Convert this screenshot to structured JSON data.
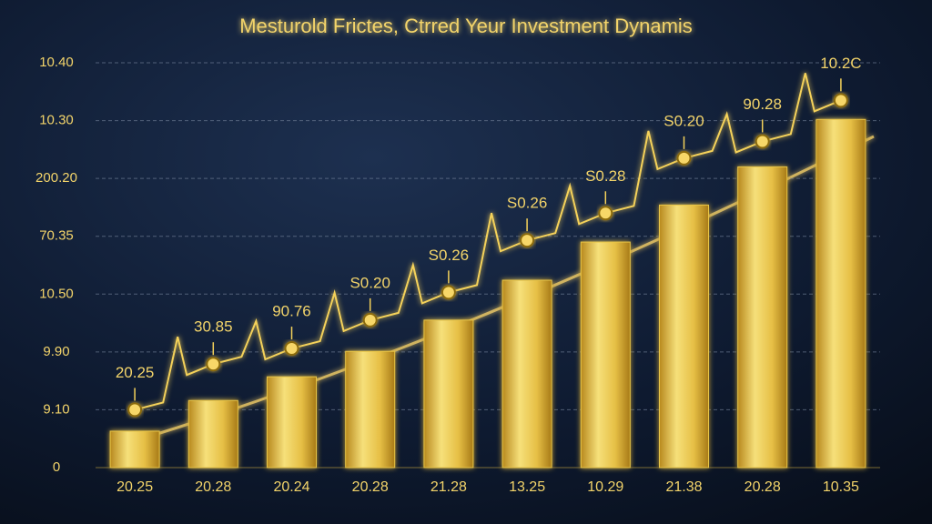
{
  "chart_data": {
    "type": "bar",
    "title": "Mesturold Frictes, Ctrred Yeur Investment Dynamis",
    "categories": [
      "20.25",
      "20.28",
      "20.24",
      "20.28",
      "21.28",
      "13.25",
      "10.29",
      "21.38",
      "20.28",
      "10.35"
    ],
    "series": [
      {
        "type": "bar",
        "color": "#e8c547",
        "values": [
          0.63,
          1.16,
          1.57,
          2.01,
          2.55,
          3.24,
          3.9,
          4.54,
          5.2,
          6.02
        ]
      },
      {
        "type": "line",
        "color": "#f5d25a",
        "values": [
          1.0,
          1.79,
          2.06,
          2.55,
          3.03,
          3.93,
          4.4,
          5.35,
          5.64,
          6.35
        ],
        "annotations": [
          "20.25",
          "30.85",
          "90.76",
          "S0.20",
          "S0.26",
          "S0.26",
          "S0.28",
          "S0.20",
          "90.28",
          "10.2C"
        ]
      }
    ],
    "ylim": [
      0,
      7
    ],
    "yticks": [
      0,
      1,
      2,
      3,
      4,
      5,
      6,
      7
    ],
    "ytick_labels": [
      "0",
      "9.10",
      "9.90",
      "10.50",
      "70.35",
      "200.20",
      "10.30",
      "10.40"
    ],
    "grid": true
  }
}
